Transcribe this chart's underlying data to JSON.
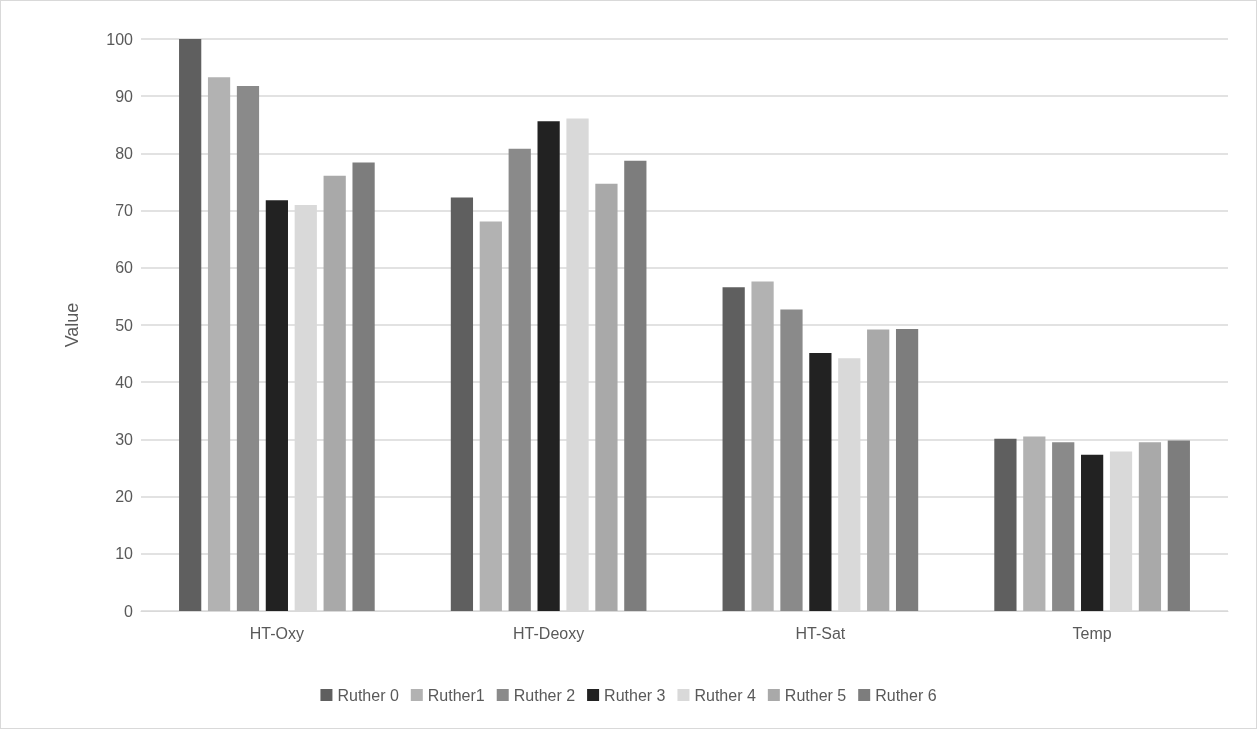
{
  "chart_data": {
    "type": "bar",
    "ylabel": "Value",
    "categories": [
      "HT-Oxy",
      "HT-Deoxy",
      "HT-Sat",
      "Temp"
    ],
    "series": [
      {
        "name": "Ruther 0",
        "color": "#5f5f5f",
        "values": [
          100,
          72.3,
          56.6,
          30.1
        ]
      },
      {
        "name": "Ruther1",
        "color": "#b2b2b2",
        "values": [
          93.3,
          68.1,
          57.6,
          30.5
        ]
      },
      {
        "name": "Ruther 2",
        "color": "#8a8a8a",
        "values": [
          91.8,
          80.8,
          52.7,
          29.5
        ]
      },
      {
        "name": "Ruther 3",
        "color": "#222222",
        "values": [
          71.8,
          85.6,
          45.1,
          27.3
        ]
      },
      {
        "name": "Ruther 4",
        "color": "#d9d9d9",
        "values": [
          71.0,
          86.1,
          44.2,
          27.9
        ]
      },
      {
        "name": "Ruther 5",
        "color": "#a9a9a9",
        "values": [
          76.1,
          74.7,
          49.2,
          29.5
        ]
      },
      {
        "name": "Ruther 6",
        "color": "#7d7d7d",
        "values": [
          78.4,
          78.7,
          49.3,
          29.8
        ]
      }
    ],
    "ylim": [
      0,
      100
    ],
    "yticks": [
      0,
      10,
      20,
      30,
      40,
      50,
      60,
      70,
      80,
      90,
      100
    ],
    "grid": "y",
    "legend": "bottom"
  }
}
